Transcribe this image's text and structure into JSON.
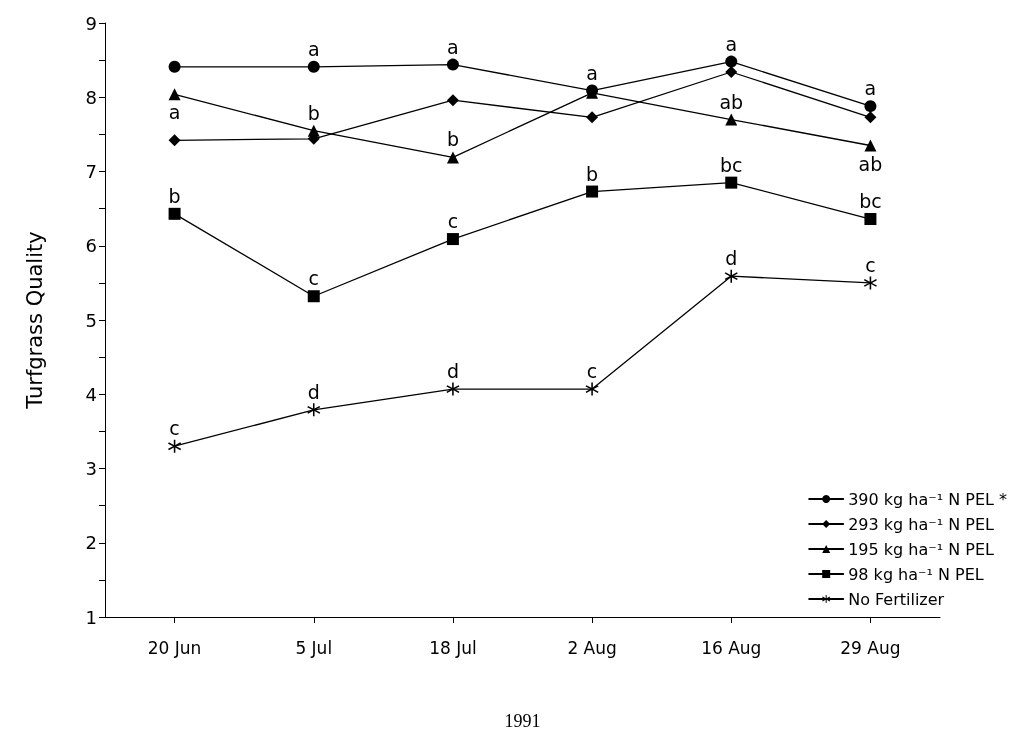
{
  "chart_data": {
    "type": "line",
    "xlabel": "1991",
    "ylabel": "Turfgrass Quality",
    "categories": [
      "20 Jun",
      "5 Jul",
      "18 Jul",
      "2 Aug",
      "16 Aug",
      "29 Aug"
    ],
    "ylim": [
      1,
      9
    ],
    "yticks": [
      1,
      {
        "value": 1.5,
        "label": null
      },
      2,
      {
        "value": 2.5,
        "label": null
      },
      3,
      {
        "value": 3.5,
        "label": null
      },
      4,
      {
        "value": 4.5,
        "label": null
      },
      5,
      {
        "value": 5.5,
        "label": null
      },
      6,
      {
        "value": 6.5,
        "label": null
      },
      7,
      {
        "value": 7.5,
        "label": null
      },
      8,
      {
        "value": 8.5,
        "label": null
      },
      9
    ],
    "grid": false,
    "legend": "bottom right",
    "line_style": "solid",
    "series": [
      {
        "name": "390 kg ha⁻¹ N PEL *",
        "color": "#000000",
        "marker": "circle",
        "values": [
          8.41,
          8.41,
          8.44,
          8.09,
          8.48,
          7.88
        ]
      },
      {
        "name": "293 kg ha⁻¹ N PEL",
        "color": "#000000",
        "marker": "diamond",
        "values": [
          7.42,
          7.44,
          7.96,
          7.73,
          8.34,
          7.73
        ]
      },
      {
        "name": "195 kg ha⁻¹ N PEL",
        "color": "#000000",
        "marker": "triangle",
        "values": [
          8.04,
          7.55,
          7.19,
          8.06,
          7.7,
          7.35
        ]
      },
      {
        "name": "98 kg ha⁻¹ N PEL",
        "color": "#000000",
        "marker": "square",
        "values": [
          6.43,
          5.32,
          6.09,
          6.73,
          6.85,
          6.36
        ]
      },
      {
        "name": "No Fertilizer",
        "color": "#000000",
        "marker": "star",
        "values": [
          3.3,
          3.79,
          4.07,
          4.07,
          5.59,
          5.5
        ]
      }
    ],
    "annotations": [
      {
        "text": "a",
        "x": "20 Jun",
        "y": 8.04
      },
      {
        "text": "b",
        "x": "20 Jun",
        "y": 6.43
      },
      {
        "text": "c",
        "x": "20 Jun",
        "y": 3.3
      },
      {
        "text": "a",
        "x": "5 Jul",
        "y": 8.41
      },
      {
        "text": "b",
        "x": "5 Jul",
        "y": 7.55
      },
      {
        "text": "c",
        "x": "5 Jul",
        "y": 5.32
      },
      {
        "text": "d",
        "x": "5 Jul",
        "y": 3.79
      },
      {
        "text": "a",
        "x": "18 Jul",
        "y": 8.44
      },
      {
        "text": "b",
        "x": "18 Jul",
        "y": 7.19
      },
      {
        "text": "c",
        "x": "18 Jul",
        "y": 6.09
      },
      {
        "text": "d",
        "x": "18 Jul",
        "y": 4.07
      },
      {
        "text": "a",
        "x": "2 Aug",
        "y": 8.09
      },
      {
        "text": "b",
        "x": "2 Aug",
        "y": 6.73
      },
      {
        "text": "c",
        "x": "2 Aug",
        "y": 4.07
      },
      {
        "text": "a",
        "x": "16 Aug",
        "y": 8.48
      },
      {
        "text": "ab",
        "x": "16 Aug",
        "y": 7.7
      },
      {
        "text": "bc",
        "x": "16 Aug",
        "y": 6.85
      },
      {
        "text": "d",
        "x": "16 Aug",
        "y": 5.59
      },
      {
        "text": "a",
        "x": "29 Aug",
        "y": 7.88
      },
      {
        "text": "ab",
        "x": "29 Aug",
        "y": 7.35
      },
      {
        "text": "bc",
        "x": "29 Aug",
        "y": 6.36
      },
      {
        "text": "c",
        "x": "29 Aug",
        "y": 5.5
      }
    ]
  }
}
